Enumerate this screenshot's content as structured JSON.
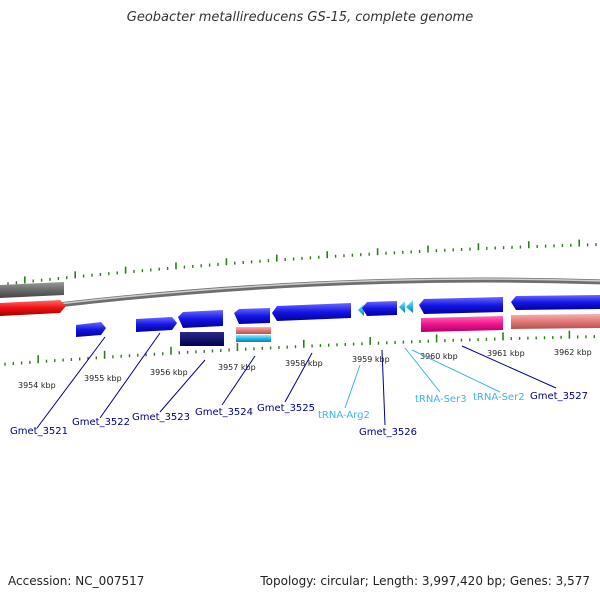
{
  "title": "Geobacter metallireducens GS-15, complete genome",
  "footer": {
    "accession": "Accession: NC_007517",
    "stats": "Topology: circular; Length: 3,997,420 bp; Genes: 3,577"
  },
  "colors": {
    "gene_label": "#00008b",
    "trna_label": "#3cb8dc",
    "tick": "#2e7d1f",
    "backbone": "#8a8a8a"
  },
  "kbp_labels": [
    "3954 kbp",
    "3955 kbp",
    "3956 kbp",
    "3957 kbp",
    "3958 kbp",
    "3959 kbp",
    "3960 kbp",
    "3961 kbp",
    "3962 kbp"
  ],
  "gene_labels": [
    {
      "id": "Gmet_3521",
      "kind": "gene"
    },
    {
      "id": "Gmet_3522",
      "kind": "gene"
    },
    {
      "id": "Gmet_3523",
      "kind": "gene"
    },
    {
      "id": "Gmet_3524",
      "kind": "gene"
    },
    {
      "id": "Gmet_3525",
      "kind": "gene"
    },
    {
      "id": "tRNA-Arg2",
      "kind": "trna"
    },
    {
      "id": "Gmet_3526",
      "kind": "gene"
    },
    {
      "id": "tRNA-Ser3",
      "kind": "trna"
    },
    {
      "id": "tRNA-Ser2",
      "kind": "trna"
    },
    {
      "id": "Gmet_3527",
      "kind": "gene"
    }
  ]
}
